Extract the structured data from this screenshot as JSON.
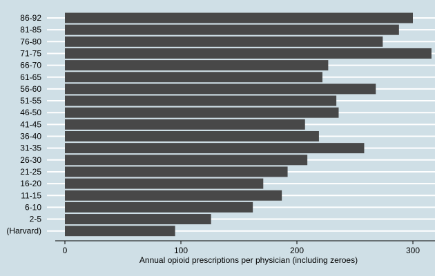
{
  "chart_data": {
    "type": "bar",
    "orientation": "horizontal",
    "categories": [
      "86-92",
      "81-85",
      "76-80",
      "71-75",
      "66-70",
      "61-65",
      "56-60",
      "51-55",
      "46-50",
      "41-45",
      "36-40",
      "31-35",
      "26-30",
      "21-25",
      "16-20",
      "11-15",
      "6-10",
      "2-5",
      "(Harvard)"
    ],
    "values": [
      300,
      288,
      274,
      316,
      227,
      222,
      268,
      234,
      236,
      207,
      219,
      258,
      209,
      192,
      171,
      187,
      162,
      126,
      95
    ],
    "xlabel": "Annual opioid prescriptions per physician (including zeroes)",
    "xticks": [
      0,
      100,
      200,
      300
    ],
    "xlim": [
      0,
      318
    ],
    "grid": true,
    "colors": {
      "bar": "#484848",
      "background": "#cfdfe6",
      "grid": "#ffffff"
    }
  }
}
